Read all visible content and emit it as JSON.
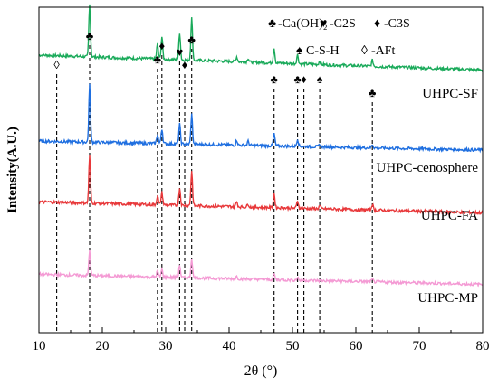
{
  "chart_data": {
    "type": "line",
    "xlabel": "2θ (°)",
    "ylabel": "Intensity(A.U.)",
    "xlim": [
      10,
      80
    ],
    "xticks": [
      10,
      20,
      30,
      40,
      50,
      60,
      70,
      80
    ],
    "yticks_shown": false,
    "grid": false,
    "legend": {
      "placement": "top-right",
      "entries": [
        {
          "symbol": "♣",
          "label": "-Ca(OH)₂"
        },
        {
          "symbol": "♥",
          "label": "-C2S"
        },
        {
          "symbol": "♦",
          "label": "-C3S"
        },
        {
          "symbol": "♠",
          "label": "C-S-H"
        },
        {
          "symbol": "◊",
          "label": "-AFt"
        }
      ]
    },
    "series": [
      {
        "name": "UHPC-SF",
        "color": "#1aaa5a",
        "offset": 3,
        "baseline_start": 0.62,
        "baseline_end": 0.32,
        "peaks": [
          [
            18.0,
            1.05
          ],
          [
            28.7,
            0.3
          ],
          [
            29.4,
            0.45
          ],
          [
            32.2,
            0.55
          ],
          [
            34.1,
            0.85
          ],
          [
            41.2,
            0.1
          ],
          [
            43.0,
            0.08
          ],
          [
            47.1,
            0.3
          ],
          [
            50.8,
            0.18
          ],
          [
            54.3,
            0.07
          ],
          [
            62.6,
            0.12
          ]
        ]
      },
      {
        "name": "UHPC-cenosphere",
        "color": "#1f6fe0",
        "offset": 2,
        "baseline_start": 0.38,
        "baseline_end": 0.2,
        "peaks": [
          [
            18.0,
            1.15
          ],
          [
            28.7,
            0.18
          ],
          [
            29.4,
            0.3
          ],
          [
            32.2,
            0.4
          ],
          [
            34.1,
            0.6
          ],
          [
            41.2,
            0.1
          ],
          [
            43.0,
            0.08
          ],
          [
            47.1,
            0.25
          ],
          [
            50.8,
            0.15
          ],
          [
            54.3,
            0.05
          ],
          [
            62.6,
            0.07
          ]
        ]
      },
      {
        "name": "UHPC-FA",
        "color": "#e8383a",
        "offset": 1,
        "baseline_start": 0.34,
        "baseline_end": 0.12,
        "peaks": [
          [
            18.0,
            0.95
          ],
          [
            28.7,
            0.18
          ],
          [
            29.4,
            0.25
          ],
          [
            32.2,
            0.35
          ],
          [
            34.1,
            0.7
          ],
          [
            41.2,
            0.1
          ],
          [
            43.0,
            0.06
          ],
          [
            47.1,
            0.28
          ],
          [
            50.8,
            0.15
          ],
          [
            54.3,
            0.06
          ],
          [
            62.6,
            0.12
          ]
        ]
      },
      {
        "name": "UHPC-MP",
        "color": "#f49ad4",
        "offset": 0,
        "baseline_start": 0.3,
        "baseline_end": 0.1,
        "peaks": [
          [
            18.0,
            0.5
          ],
          [
            28.7,
            0.12
          ],
          [
            29.4,
            0.15
          ],
          [
            32.2,
            0.25
          ],
          [
            34.1,
            0.4
          ],
          [
            41.2,
            0.05
          ],
          [
            47.1,
            0.12
          ],
          [
            50.8,
            0.06
          ],
          [
            62.6,
            0.05
          ]
        ]
      }
    ],
    "reference_lines": [
      {
        "x": 12.8,
        "symbol": "◊"
      },
      {
        "x": 18.0,
        "symbol": "♣"
      },
      {
        "x": 28.7,
        "symbol": "♣"
      },
      {
        "x": 29.4,
        "symbol": "♦"
      },
      {
        "x": 32.2,
        "symbol": "♥"
      },
      {
        "x": 33.0,
        "symbol": "♦"
      },
      {
        "x": 34.1,
        "symbol": "♣"
      },
      {
        "x": 47.1,
        "symbol": "♣"
      },
      {
        "x": 50.8,
        "symbol": "♣"
      },
      {
        "x": 51.8,
        "symbol": "♦"
      },
      {
        "x": 54.3,
        "symbol": "♠"
      },
      {
        "x": 62.6,
        "symbol": "♣"
      }
    ]
  }
}
